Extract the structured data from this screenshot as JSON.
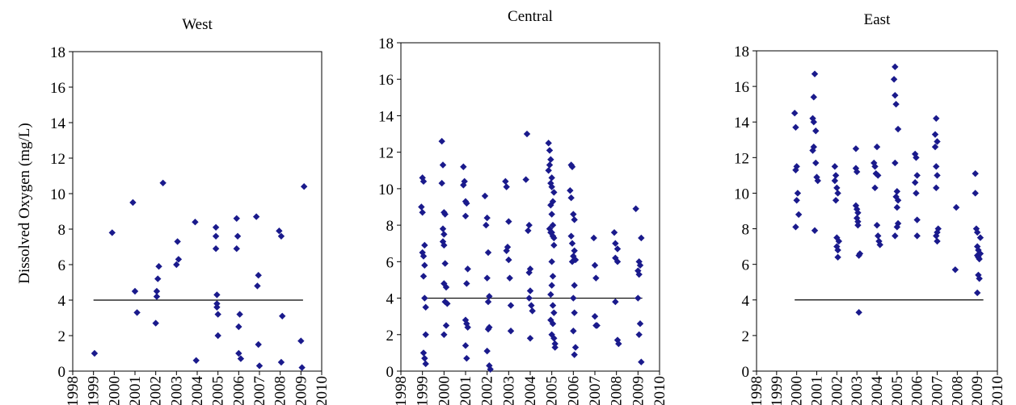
{
  "ylabel": "Dissolved Oxygen (mg/L)",
  "chart_data": [
    {
      "type": "scatter",
      "title": "West",
      "xlabel": "",
      "ylabel": "Dissolved Oxygen (mg/L)",
      "xlim": [
        1998,
        2010
      ],
      "ylim": [
        0,
        18
      ],
      "x_ticks": [
        "1998",
        "1999",
        "2000",
        "2001",
        "2002",
        "2003",
        "2004",
        "2005",
        "2006",
        "2007",
        "2008",
        "2009",
        "2010"
      ],
      "y_ticks": [
        "0",
        "2",
        "4",
        "6",
        "8",
        "10",
        "12",
        "14",
        "16",
        "18"
      ],
      "reference_line": {
        "y": 4,
        "x_from": 1999.0,
        "x_to": 2009.1
      },
      "marker_color": "#1a1a8c",
      "grid": false,
      "points": [
        [
          1999.05,
          1.0
        ],
        [
          1999.9,
          7.8
        ],
        [
          2000.9,
          9.5
        ],
        [
          2001.0,
          4.5
        ],
        [
          2001.1,
          3.3
        ],
        [
          2002.0,
          2.7
        ],
        [
          2002.05,
          4.2
        ],
        [
          2002.05,
          4.5
        ],
        [
          2002.1,
          5.2
        ],
        [
          2002.15,
          5.9
        ],
        [
          2002.35,
          10.6
        ],
        [
          2003.0,
          6.0
        ],
        [
          2003.05,
          7.3
        ],
        [
          2003.1,
          6.3
        ],
        [
          2003.9,
          8.4
        ],
        [
          2003.95,
          0.6
        ],
        [
          2004.9,
          8.1
        ],
        [
          2004.9,
          7.6
        ],
        [
          2004.9,
          6.9
        ],
        [
          2004.95,
          4.3
        ],
        [
          2004.95,
          3.8
        ],
        [
          2004.95,
          3.6
        ],
        [
          2005.0,
          3.2
        ],
        [
          2005.0,
          2.0
        ],
        [
          2005.9,
          8.6
        ],
        [
          2005.95,
          7.6
        ],
        [
          2005.9,
          6.9
        ],
        [
          2006.05,
          3.2
        ],
        [
          2006.0,
          2.5
        ],
        [
          2006.0,
          1.0
        ],
        [
          2006.1,
          0.7
        ],
        [
          2006.85,
          8.7
        ],
        [
          2006.95,
          5.4
        ],
        [
          2006.9,
          4.8
        ],
        [
          2006.95,
          1.5
        ],
        [
          2007.0,
          0.3
        ],
        [
          2007.95,
          7.9
        ],
        [
          2008.05,
          7.6
        ],
        [
          2008.1,
          3.1
        ],
        [
          2008.05,
          0.5
        ],
        [
          2009.0,
          1.7
        ],
        [
          2009.05,
          0.2
        ],
        [
          2009.15,
          10.4
        ]
      ]
    },
    {
      "type": "scatter",
      "title": "Central",
      "xlabel": "",
      "ylabel": "",
      "xlim": [
        1998,
        2010
      ],
      "ylim": [
        0,
        18
      ],
      "x_ticks": [
        "1998",
        "1999",
        "2000",
        "2001",
        "2002",
        "2003",
        "2004",
        "2005",
        "2006",
        "2007",
        "2008",
        "2009",
        "2010"
      ],
      "y_ticks": [
        "0",
        "2",
        "4",
        "6",
        "8",
        "10",
        "12",
        "14",
        "16",
        "18"
      ],
      "reference_line": {
        "y": 4,
        "x_from": 1999.0,
        "x_to": 2009.2
      },
      "marker_color": "#1a1a8c",
      "grid": false,
      "points": [
        [
          1999.0,
          10.6
        ],
        [
          1999.05,
          10.4
        ],
        [
          1998.95,
          9.0
        ],
        [
          1999.0,
          8.7
        ],
        [
          1999.1,
          6.9
        ],
        [
          1999.0,
          6.5
        ],
        [
          1999.05,
          6.3
        ],
        [
          1999.1,
          5.8
        ],
        [
          1999.05,
          5.2
        ],
        [
          1999.1,
          4.0
        ],
        [
          1999.15,
          3.5
        ],
        [
          1999.15,
          2.0
        ],
        [
          1999.05,
          1.0
        ],
        [
          1999.1,
          0.7
        ],
        [
          1999.15,
          0.4
        ],
        [
          1999.9,
          12.6
        ],
        [
          1999.95,
          11.3
        ],
        [
          1999.9,
          10.3
        ],
        [
          2000.0,
          8.7
        ],
        [
          2000.05,
          8.6
        ],
        [
          1999.95,
          7.8
        ],
        [
          2000.0,
          7.5
        ],
        [
          1999.95,
          7.1
        ],
        [
          2000.0,
          6.9
        ],
        [
          2000.05,
          5.9
        ],
        [
          2000.0,
          4.8
        ],
        [
          2000.1,
          4.6
        ],
        [
          2000.05,
          3.8
        ],
        [
          2000.15,
          3.7
        ],
        [
          2000.1,
          2.5
        ],
        [
          2000.0,
          2.0
        ],
        [
          2000.9,
          11.2
        ],
        [
          2000.95,
          10.4
        ],
        [
          2000.9,
          10.2
        ],
        [
          2001.0,
          9.3
        ],
        [
          2001.05,
          9.2
        ],
        [
          2001.0,
          8.5
        ],
        [
          2001.1,
          5.6
        ],
        [
          2001.05,
          4.8
        ],
        [
          2001.0,
          2.8
        ],
        [
          2001.05,
          2.6
        ],
        [
          2001.1,
          2.4
        ],
        [
          2001.0,
          1.4
        ],
        [
          2001.05,
          0.7
        ],
        [
          2001.9,
          9.6
        ],
        [
          2002.0,
          8.4
        ],
        [
          2001.95,
          8.0
        ],
        [
          2002.05,
          6.5
        ],
        [
          2002.0,
          5.1
        ],
        [
          2002.1,
          4.1
        ],
        [
          2002.05,
          3.8
        ],
        [
          2002.1,
          2.4
        ],
        [
          2002.05,
          2.3
        ],
        [
          2002.0,
          1.1
        ],
        [
          2002.1,
          0.3
        ],
        [
          2002.15,
          0.1
        ],
        [
          2002.85,
          10.4
        ],
        [
          2002.9,
          10.1
        ],
        [
          2003.0,
          8.2
        ],
        [
          2002.95,
          6.8
        ],
        [
          2002.9,
          6.6
        ],
        [
          2003.0,
          6.1
        ],
        [
          2003.05,
          5.1
        ],
        [
          2003.1,
          3.6
        ],
        [
          2003.1,
          2.2
        ],
        [
          2003.85,
          13.0
        ],
        [
          2003.8,
          10.5
        ],
        [
          2003.95,
          8.0
        ],
        [
          2003.9,
          7.7
        ],
        [
          2004.0,
          5.6
        ],
        [
          2003.95,
          5.4
        ],
        [
          2004.0,
          4.4
        ],
        [
          2003.95,
          4.0
        ],
        [
          2004.05,
          3.6
        ],
        [
          2004.1,
          3.3
        ],
        [
          2004.0,
          1.8
        ],
        [
          2004.85,
          12.5
        ],
        [
          2004.9,
          12.1
        ],
        [
          2004.95,
          11.6
        ],
        [
          2004.9,
          11.3
        ],
        [
          2004.85,
          11.0
        ],
        [
          2005.0,
          10.6
        ],
        [
          2004.95,
          10.3
        ],
        [
          2005.0,
          10.1
        ],
        [
          2005.1,
          9.8
        ],
        [
          2005.05,
          9.3
        ],
        [
          2004.95,
          9.1
        ],
        [
          2005.0,
          8.6
        ],
        [
          2005.05,
          8.0
        ],
        [
          2004.9,
          7.8
        ],
        [
          2004.95,
          7.6
        ],
        [
          2005.0,
          7.6
        ],
        [
          2005.05,
          7.4
        ],
        [
          2005.1,
          7.3
        ],
        [
          2005.1,
          6.9
        ],
        [
          2005.0,
          6.0
        ],
        [
          2005.05,
          5.2
        ],
        [
          2005.0,
          4.7
        ],
        [
          2004.95,
          4.2
        ],
        [
          2005.05,
          3.6
        ],
        [
          2005.1,
          3.2
        ],
        [
          2004.95,
          2.8
        ],
        [
          2005.05,
          2.6
        ],
        [
          2005.0,
          2.0
        ],
        [
          2005.1,
          1.8
        ],
        [
          2005.15,
          1.5
        ],
        [
          2005.15,
          1.3
        ],
        [
          2005.9,
          11.3
        ],
        [
          2005.95,
          11.2
        ],
        [
          2005.85,
          9.9
        ],
        [
          2005.9,
          9.5
        ],
        [
          2006.0,
          8.6
        ],
        [
          2006.05,
          8.3
        ],
        [
          2005.9,
          7.4
        ],
        [
          2005.95,
          7.0
        ],
        [
          2006.05,
          6.6
        ],
        [
          2006.0,
          6.3
        ],
        [
          2006.1,
          6.1
        ],
        [
          2005.95,
          6.0
        ],
        [
          2006.05,
          4.7
        ],
        [
          2006.0,
          4.0
        ],
        [
          2006.05,
          3.2
        ],
        [
          2006.0,
          2.2
        ],
        [
          2006.1,
          1.3
        ],
        [
          2006.05,
          0.9
        ],
        [
          2006.95,
          7.3
        ],
        [
          2007.0,
          5.8
        ],
        [
          2007.05,
          5.1
        ],
        [
          2007.0,
          3.0
        ],
        [
          2007.05,
          2.5
        ],
        [
          2007.1,
          2.5
        ],
        [
          2007.9,
          7.6
        ],
        [
          2007.95,
          7.0
        ],
        [
          2008.05,
          6.7
        ],
        [
          2007.95,
          6.2
        ],
        [
          2008.05,
          6.0
        ],
        [
          2007.95,
          3.8
        ],
        [
          2008.05,
          1.7
        ],
        [
          2008.1,
          1.5
        ],
        [
          2008.9,
          8.9
        ],
        [
          2009.05,
          6.0
        ],
        [
          2009.1,
          5.8
        ],
        [
          2009.15,
          7.3
        ],
        [
          2009.0,
          5.5
        ],
        [
          2009.05,
          5.3
        ],
        [
          2009.0,
          4.0
        ],
        [
          2009.1,
          2.6
        ],
        [
          2009.05,
          2.0
        ],
        [
          2009.15,
          0.5
        ]
      ]
    },
    {
      "type": "scatter",
      "title": "East",
      "xlabel": "",
      "ylabel": "",
      "xlim": [
        1998,
        2010
      ],
      "ylim": [
        0,
        18
      ],
      "x_ticks": [
        "1998",
        "1999",
        "2000",
        "2001",
        "2002",
        "2003",
        "2004",
        "2005",
        "2006",
        "2007",
        "2008",
        "2009",
        "2010"
      ],
      "y_ticks": [
        "0",
        "2",
        "4",
        "6",
        "8",
        "10",
        "12",
        "14",
        "16",
        "18"
      ],
      "reference_line": {
        "y": 4,
        "x_from": 1999.9,
        "x_to": 2009.3
      },
      "marker_color": "#1a1a8c",
      "grid": false,
      "points": [
        [
          1999.9,
          14.5
        ],
        [
          1999.95,
          13.7
        ],
        [
          2000.0,
          11.5
        ],
        [
          1999.95,
          11.3
        ],
        [
          2000.05,
          10.0
        ],
        [
          2000.0,
          9.6
        ],
        [
          2000.1,
          8.8
        ],
        [
          1999.95,
          8.1
        ],
        [
          2000.9,
          16.7
        ],
        [
          2000.85,
          15.4
        ],
        [
          2000.8,
          14.2
        ],
        [
          2000.85,
          14.0
        ],
        [
          2000.95,
          13.5
        ],
        [
          2000.85,
          12.6
        ],
        [
          2000.8,
          12.4
        ],
        [
          2000.95,
          11.7
        ],
        [
          2001.0,
          10.9
        ],
        [
          2001.05,
          10.7
        ],
        [
          2000.9,
          7.9
        ],
        [
          2001.9,
          11.5
        ],
        [
          2001.95,
          11.0
        ],
        [
          2001.9,
          10.7
        ],
        [
          2002.0,
          10.3
        ],
        [
          2002.05,
          10.0
        ],
        [
          2001.95,
          9.6
        ],
        [
          2002.0,
          7.5
        ],
        [
          2002.1,
          7.3
        ],
        [
          2002.0,
          7.0
        ],
        [
          2002.05,
          6.8
        ],
        [
          2002.05,
          6.4
        ],
        [
          2002.95,
          12.5
        ],
        [
          2002.95,
          11.4
        ],
        [
          2003.0,
          11.2
        ],
        [
          2002.95,
          9.3
        ],
        [
          2003.0,
          9.1
        ],
        [
          2003.05,
          8.9
        ],
        [
          2003.0,
          8.6
        ],
        [
          2003.05,
          8.4
        ],
        [
          2003.05,
          8.2
        ],
        [
          2003.15,
          6.6
        ],
        [
          2003.1,
          6.5
        ],
        [
          2003.1,
          3.3
        ],
        [
          2003.85,
          11.7
        ],
        [
          2003.9,
          11.5
        ],
        [
          2004.0,
          12.6
        ],
        [
          2003.95,
          11.1
        ],
        [
          2004.05,
          11.0
        ],
        [
          2003.9,
          10.3
        ],
        [
          2004.0,
          8.2
        ],
        [
          2004.05,
          7.6
        ],
        [
          2004.1,
          7.3
        ],
        [
          2004.15,
          7.1
        ],
        [
          2004.9,
          17.1
        ],
        [
          2004.85,
          16.4
        ],
        [
          2004.9,
          15.5
        ],
        [
          2004.95,
          15.0
        ],
        [
          2005.05,
          13.6
        ],
        [
          2004.9,
          11.7
        ],
        [
          2005.0,
          10.1
        ],
        [
          2004.95,
          9.8
        ],
        [
          2005.05,
          9.6
        ],
        [
          2005.0,
          9.2
        ],
        [
          2005.05,
          8.3
        ],
        [
          2005.0,
          8.1
        ],
        [
          2004.9,
          7.6
        ],
        [
          2005.9,
          12.2
        ],
        [
          2005.95,
          12.0
        ],
        [
          2006.0,
          11.0
        ],
        [
          2005.9,
          10.6
        ],
        [
          2005.95,
          10.0
        ],
        [
          2006.0,
          8.5
        ],
        [
          2006.0,
          7.6
        ],
        [
          2006.95,
          14.2
        ],
        [
          2006.9,
          13.3
        ],
        [
          2007.0,
          12.9
        ],
        [
          2006.9,
          12.6
        ],
        [
          2006.95,
          11.5
        ],
        [
          2007.0,
          11.0
        ],
        [
          2006.95,
          10.3
        ],
        [
          2007.05,
          8.0
        ],
        [
          2007.0,
          7.8
        ],
        [
          2006.95,
          7.6
        ],
        [
          2007.0,
          7.3
        ],
        [
          2007.95,
          9.2
        ],
        [
          2007.9,
          5.7
        ],
        [
          2008.9,
          11.1
        ],
        [
          2008.9,
          10.0
        ],
        [
          2008.95,
          8.0
        ],
        [
          2009.0,
          7.8
        ],
        [
          2009.15,
          7.5
        ],
        [
          2009.0,
          7.0
        ],
        [
          2009.05,
          6.8
        ],
        [
          2009.1,
          6.6
        ],
        [
          2009.05,
          6.4
        ],
        [
          2009.0,
          6.5
        ],
        [
          2009.1,
          6.3
        ],
        [
          2009.15,
          6.6
        ],
        [
          2009.05,
          5.4
        ],
        [
          2009.1,
          5.2
        ],
        [
          2009.0,
          4.4
        ]
      ]
    }
  ]
}
